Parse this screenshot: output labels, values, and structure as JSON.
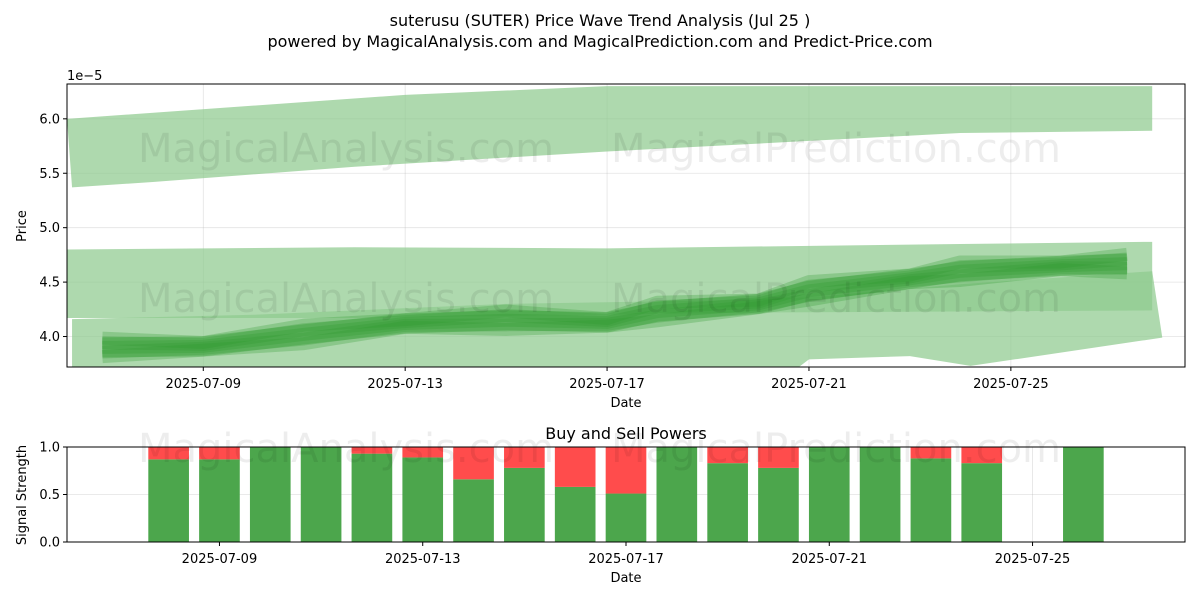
{
  "title_line1": "suterusu (SUTER) Price Wave Trend Analysis (Jul 25 )",
  "title_line2": "powered by MagicalAnalysis.com and MagicalPrediction.com and Predict-Price.com",
  "watermarks": [
    "MagicalAnalysis.com",
    "MagicalPrediction.com"
  ],
  "colors": {
    "band": "#8fca8f",
    "wave": "#2e9b2e",
    "buy": "#4ca64c",
    "sell": "#ff4c4c"
  },
  "chart_data": [
    {
      "type": "area",
      "xlabel": "Date",
      "ylabel": "Price",
      "y_scale_label": "1e−5",
      "ylim": [
        3.72,
        6.32
      ],
      "xlim": [
        "2025-07-06",
        "2025-07-28"
      ],
      "y_ticks": [
        4.0,
        4.5,
        5.0,
        5.5,
        6.0
      ],
      "y_tick_labels": [
        "4.0",
        "4.5",
        "5.0",
        "5.5",
        "6.0"
      ],
      "x_ticks": [
        "2025-07-09",
        "2025-07-13",
        "2025-07-17",
        "2025-07-21",
        "2025-07-25"
      ],
      "grid": true,
      "bands": [
        {
          "upper": [
            [
              "2025-07-06.3",
              6.0
            ],
            [
              "2025-07-13",
              6.22
            ],
            [
              "2025-07-17",
              6.3
            ],
            [
              "2025-07-27.8",
              6.3
            ]
          ],
          "lower": [
            [
              "2025-07-06.4",
              5.37
            ],
            [
              "2025-07-08",
              5.42
            ],
            [
              "2025-07-12",
              5.56
            ],
            [
              "2025-07-17",
              5.7
            ],
            [
              "2025-07-24",
              5.87
            ],
            [
              "2025-07-27.8",
              5.89
            ]
          ]
        },
        {
          "upper": [
            [
              "2025-07-06.3",
              4.8
            ],
            [
              "2025-07-12",
              4.82
            ],
            [
              "2025-07-17",
              4.81
            ],
            [
              "2025-07-24",
              4.85
            ],
            [
              "2025-07-27.8",
              4.87
            ]
          ],
          "lower": [
            [
              "2025-07-06.3",
              4.17
            ],
            [
              "2025-07-12",
              4.17
            ],
            [
              "2025-07-20",
              4.22
            ],
            [
              "2025-07-27.8",
              4.24
            ]
          ]
        },
        {
          "upper": [
            [
              "2025-07-06.4",
              4.16
            ],
            [
              "2025-07-10",
              4.2
            ],
            [
              "2025-07-15",
              4.3
            ],
            [
              "2025-07-19",
              4.33
            ],
            [
              "2025-07-21",
              4.36
            ],
            [
              "2025-07-24",
              4.48
            ],
            [
              "2025-07-27.8",
              4.6
            ]
          ],
          "lower": [
            [
              "2025-07-06.4",
              3.72
            ],
            [
              "2025-07-20.8",
              3.72
            ],
            [
              "2025-07-21",
              3.79
            ],
            [
              "2025-07-23",
              3.82
            ],
            [
              "2025-07-24.2",
              3.73
            ],
            [
              "2025-07-28",
              3.99
            ]
          ]
        }
      ],
      "wave": [
        [
          "2025-07-07",
          3.9
        ],
        [
          "2025-07-09",
          3.91
        ],
        [
          "2025-07-11",
          4.02
        ],
        [
          "2025-07-13",
          4.12
        ],
        [
          "2025-07-15",
          4.15
        ],
        [
          "2025-07-17",
          4.13
        ],
        [
          "2025-07-18",
          4.23
        ],
        [
          "2025-07-20",
          4.3
        ],
        [
          "2025-07-21",
          4.42
        ],
        [
          "2025-07-23",
          4.53
        ],
        [
          "2025-07-24",
          4.6
        ],
        [
          "2025-07-26",
          4.65
        ],
        [
          "2025-07-27.3",
          4.67
        ]
      ],
      "wave_spread": 0.1
    },
    {
      "type": "bar",
      "title": "Buy and Sell Powers",
      "xlabel": "Date",
      "ylabel": "Signal Strength",
      "ylim": [
        0,
        1.0
      ],
      "y_ticks": [
        0.0,
        0.5,
        1.0
      ],
      "y_tick_labels": [
        "0.0",
        "0.5",
        "1.0"
      ],
      "x_ticks": [
        "2025-07-09",
        "2025-07-13",
        "2025-07-17",
        "2025-07-21",
        "2025-07-25"
      ],
      "categories": [
        "2025-07-08",
        "2025-07-09",
        "2025-07-10",
        "2025-07-11",
        "2025-07-12",
        "2025-07-13",
        "2025-07-14",
        "2025-07-15",
        "2025-07-16",
        "2025-07-17",
        "2025-07-18",
        "2025-07-19",
        "2025-07-20",
        "2025-07-21",
        "2025-07-22",
        "2025-07-23",
        "2025-07-24",
        "2025-07-26"
      ],
      "series": [
        {
          "key": "buy",
          "values": [
            0.87,
            0.87,
            1.0,
            1.0,
            0.93,
            0.89,
            0.66,
            0.78,
            0.58,
            0.51,
            1.0,
            0.83,
            0.78,
            1.0,
            1.0,
            0.88,
            0.83,
            1.0
          ]
        },
        {
          "key": "sell",
          "values": [
            0.13,
            0.13,
            0.0,
            0.0,
            0.07,
            0.11,
            0.34,
            0.22,
            0.42,
            0.49,
            0.0,
            0.17,
            0.22,
            0.0,
            0.0,
            0.12,
            0.17,
            0.0
          ]
        }
      ]
    }
  ]
}
